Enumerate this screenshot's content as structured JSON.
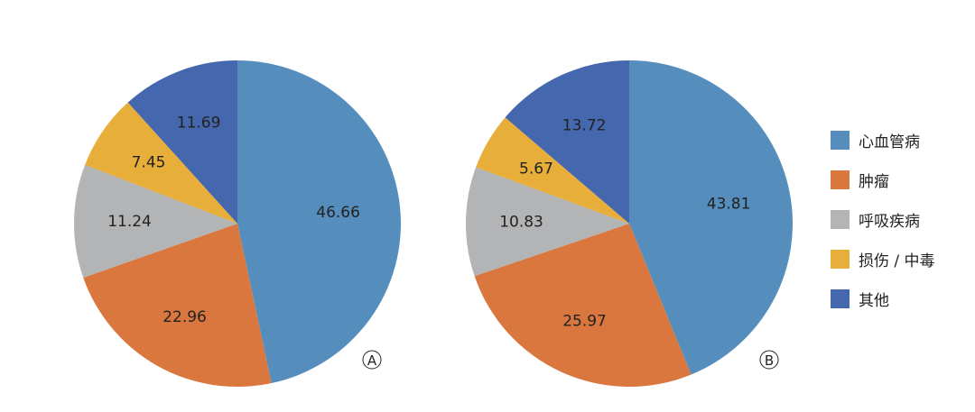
{
  "chart_data": [
    {
      "type": "pie",
      "panel_label": "A",
      "categories": [
        "心血管病",
        "肿瘤",
        "呼吸疾病",
        "损伤 / 中毒",
        "其他"
      ],
      "values": [
        46.66,
        22.96,
        11.24,
        7.45,
        11.69
      ],
      "value_labels": [
        "46.66",
        "22.96",
        "11.24",
        "7.45",
        "11.69"
      ],
      "start": "top",
      "direction": "clockwise"
    },
    {
      "type": "pie",
      "panel_label": "B",
      "categories": [
        "心血管病",
        "肿瘤",
        "呼吸疾病",
        "损伤 / 中毒",
        "其他"
      ],
      "values": [
        43.81,
        25.97,
        10.83,
        5.67,
        13.72
      ],
      "value_labels": [
        "43.81",
        "25.97",
        "10.83",
        "5.67",
        "13.72"
      ],
      "start": "top",
      "direction": "clockwise"
    }
  ],
  "legend": {
    "placement": "right",
    "items": [
      {
        "label": "心血管病",
        "color": "#558ebd"
      },
      {
        "label": "肿瘤",
        "color": "#d9773e"
      },
      {
        "label": "呼吸疾病",
        "color": "#b3b4b6"
      },
      {
        "label": "损伤 / 中毒",
        "color": "#e8ae3a"
      },
      {
        "label": "其他",
        "color": "#4467ad"
      }
    ]
  },
  "colors": [
    "#558ebd",
    "#d9773e",
    "#b3b4b6",
    "#e8ae3a",
    "#4467ad"
  ]
}
